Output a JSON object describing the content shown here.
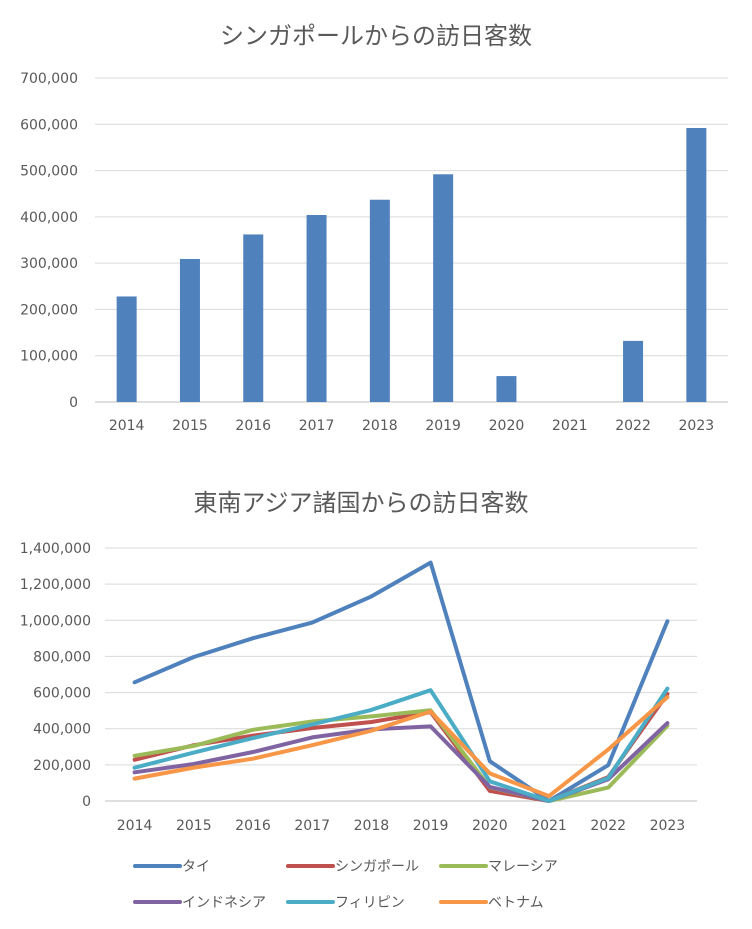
{
  "chart_data": [
    {
      "type": "bar",
      "title": "シンガポールからの訪日客数",
      "categories": [
        "2014",
        "2015",
        "2016",
        "2017",
        "2018",
        "2019",
        "2020",
        "2021",
        "2022",
        "2023"
      ],
      "values": [
        228000,
        309000,
        362000,
        404000,
        437000,
        492000,
        56000,
        0,
        132000,
        592000
      ],
      "ylim": [
        0,
        700000
      ],
      "yticks": [
        0,
        100000,
        200000,
        300000,
        400000,
        500000,
        600000,
        700000
      ],
      "ytick_labels": [
        "0",
        "100,000",
        "200,000",
        "300,000",
        "400,000",
        "500,000",
        "600,000",
        "700,000"
      ],
      "grid": true,
      "colors": {
        "bar": "#4f81bd"
      }
    },
    {
      "type": "line",
      "title": "東南アジア諸国からの訪日客数",
      "categories": [
        "2014",
        "2015",
        "2016",
        "2017",
        "2018",
        "2019",
        "2020",
        "2021",
        "2022",
        "2023"
      ],
      "ylim": [
        0,
        1400000
      ],
      "yticks": [
        0,
        200000,
        400000,
        600000,
        800000,
        1000000,
        1200000,
        1400000
      ],
      "ytick_labels": [
        "0",
        "200,000",
        "400,000",
        "600,000",
        "800,000",
        "1,000,000",
        "1,200,000",
        "1,400,000"
      ],
      "grid": true,
      "legend_position": "bottom",
      "series": [
        {
          "name": "タイ",
          "color": "#4f81bd",
          "values": [
            657000,
            797000,
            901000,
            987000,
            1132000,
            1319000,
            220000,
            0,
            198000,
            995000
          ]
        },
        {
          "name": "シンガポール",
          "color": "#c0504d",
          "values": [
            228000,
            309000,
            362000,
            404000,
            437000,
            492000,
            56000,
            0,
            132000,
            592000
          ]
        },
        {
          "name": "マレーシア",
          "color": "#9bbb59",
          "values": [
            250000,
            305000,
            394000,
            440000,
            468000,
            502000,
            76000,
            0,
            74000,
            416000
          ]
        },
        {
          "name": "インドネシア",
          "color": "#8064a2",
          "values": [
            159000,
            205000,
            271000,
            352000,
            396000,
            413000,
            78000,
            0,
            120000,
            431000
          ]
        },
        {
          "name": "フィリピン",
          "color": "#4bacc6",
          "values": [
            184000,
            268000,
            348000,
            424000,
            504000,
            613000,
            109000,
            0,
            127000,
            622000
          ]
        },
        {
          "name": "ベトナム",
          "color": "#f79646",
          "values": [
            124000,
            185000,
            234000,
            309000,
            389000,
            495000,
            153000,
            27000,
            285000,
            575000
          ]
        }
      ]
    }
  ]
}
